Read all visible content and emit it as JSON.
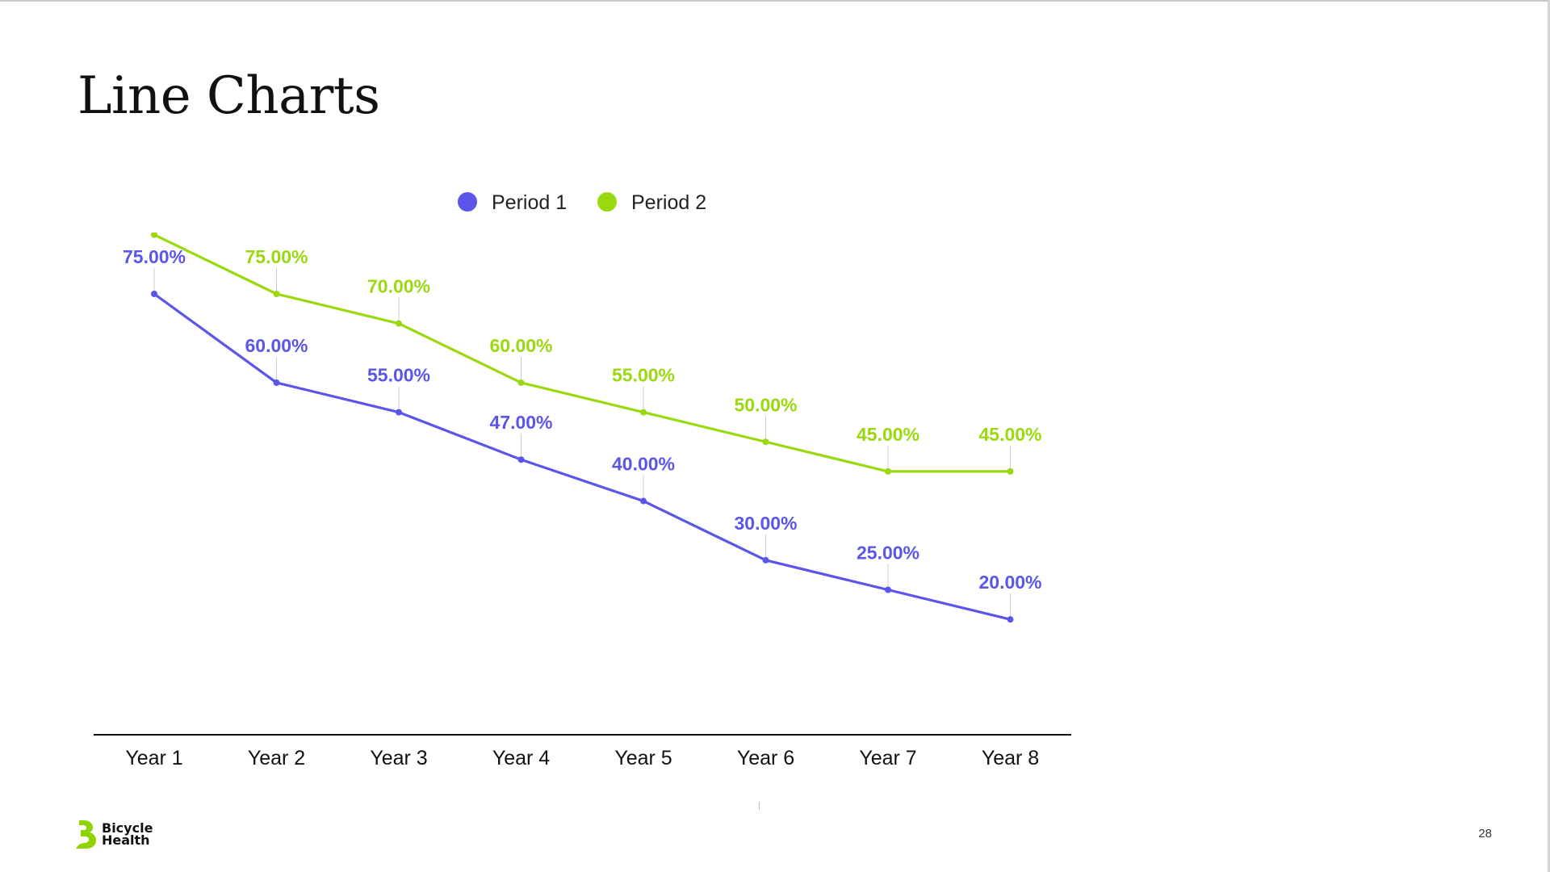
{
  "slide": {
    "title": "Line Charts",
    "page_number": "28"
  },
  "logo": {
    "line1": "Bicycle",
    "line2": "Health",
    "icon": "bicycle-health-logo-icon",
    "color": "#8fd400"
  },
  "colors": {
    "period1": "#5b55ea",
    "period2": "#9ad80f",
    "axis": "#111111",
    "leader": "#cccccc"
  },
  "chart_data": {
    "type": "line",
    "categories": [
      "Year 1",
      "Year 2",
      "Year 3",
      "Year 4",
      "Year 5",
      "Year 6",
      "Year 7",
      "Year 8"
    ],
    "series": [
      {
        "name": "Period 1",
        "values": [
          75,
          60,
          55,
          47,
          40,
          30,
          25,
          20
        ],
        "labels": [
          "75.00%",
          "60.00%",
          "55.00%",
          "47.00%",
          "40.00%",
          "30.00%",
          "25.00%",
          "20.00%"
        ],
        "color": "#5b55ea"
      },
      {
        "name": "Period 2",
        "values": [
          85,
          75,
          70,
          60,
          55,
          50,
          45,
          45
        ],
        "labels": [
          "",
          "75.00%",
          "70.00%",
          "60.00%",
          "55.00%",
          "50.00%",
          "45.00%",
          "45.00%"
        ],
        "color": "#9ad80f"
      }
    ],
    "ylim": [
      0,
      90
    ],
    "legend_position": "top",
    "grid": false
  }
}
